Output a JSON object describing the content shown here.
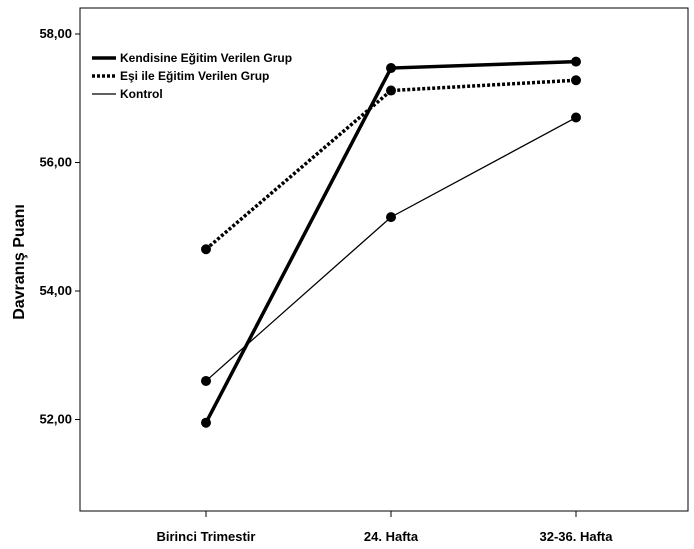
{
  "chart_data": {
    "type": "line",
    "title": "",
    "xlabel": "",
    "ylabel": "Davranış Puanı",
    "categories": [
      "Birinci Trimestir",
      "24. Hafta",
      "32-36. Hafta"
    ],
    "ylim": [
      50.2,
      58.4
    ],
    "yticks": [
      52.0,
      54.0,
      56.0,
      58.0
    ],
    "ytick_labels": [
      "52,00",
      "54,00",
      "56,00",
      "58,00"
    ],
    "grid": false,
    "legend_position": "top-left",
    "series": [
      {
        "name": "Kendisine Eğitim Verilen Grup",
        "values": [
          51.95,
          57.47,
          57.57
        ],
        "line_style": "solid-thick",
        "color": "#000000"
      },
      {
        "name": "Eşi ile Eğitim Verilen Grup",
        "values": [
          54.65,
          57.12,
          57.28
        ],
        "line_style": "dotted",
        "color": "#000000"
      },
      {
        "name": "Kontrol",
        "values": [
          52.6,
          55.15,
          56.7
        ],
        "line_style": "solid-thin",
        "color": "#000000"
      }
    ]
  }
}
